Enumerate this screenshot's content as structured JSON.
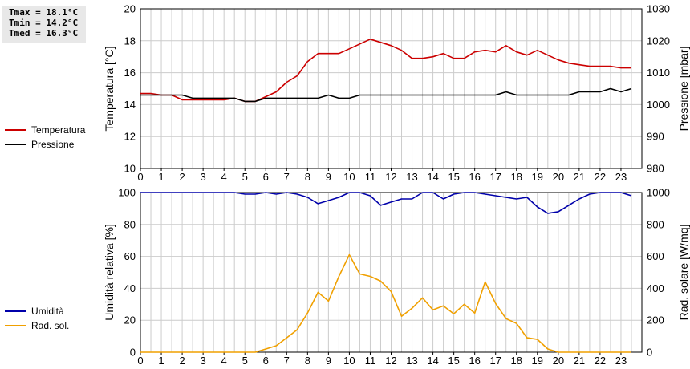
{
  "stats": {
    "tmax": "Tmax = 18.1°C",
    "tmin": "Tmin = 14.2°C",
    "tmed": "Tmed = 16.3°C"
  },
  "colors": {
    "temperature": "#cc0000",
    "pressure": "#000000",
    "humidity": "#0000aa",
    "radiation": "#f0a000",
    "grid": "#cccccc"
  },
  "chart_data": [
    {
      "type": "line",
      "x_ticks": [
        "0",
        "1",
        "2",
        "3",
        "4",
        "5",
        "6",
        "7",
        "8",
        "9",
        "10",
        "11",
        "12",
        "13",
        "14",
        "15",
        "16",
        "17",
        "18",
        "19",
        "20",
        "21",
        "22",
        "23"
      ],
      "xlim": [
        0,
        24
      ],
      "ylabel": "Temperatura [°C]",
      "ylim": [
        10,
        20
      ],
      "y_ticks": [
        "10",
        "12",
        "14",
        "16",
        "18",
        "20"
      ],
      "y2label": "Pressione [mbar]",
      "y2lim": [
        980,
        1030
      ],
      "y2_ticks": [
        "980",
        "990",
        "1000",
        "1010",
        "1020",
        "1030"
      ],
      "grid": true,
      "legend": [
        "Temperatura",
        "Pressione"
      ],
      "series": [
        {
          "name": "Temperatura",
          "axis": "left",
          "x": [
            0,
            0.5,
            1,
            1.5,
            2,
            2.5,
            3,
            3.5,
            4,
            4.5,
            5,
            5.5,
            6,
            6.5,
            7,
            7.5,
            8,
            8.5,
            9,
            9.5,
            10,
            10.5,
            11,
            11.5,
            12,
            12.5,
            13,
            13.5,
            14,
            14.5,
            15,
            15.5,
            16,
            16.5,
            17,
            17.5,
            18,
            18.5,
            19,
            19.5,
            20,
            20.5,
            21,
            21.5,
            22,
            22.5,
            23,
            23.5
          ],
          "values": [
            14.7,
            14.7,
            14.6,
            14.6,
            14.3,
            14.3,
            14.3,
            14.3,
            14.3,
            14.4,
            14.2,
            14.2,
            14.5,
            14.8,
            15.4,
            15.8,
            16.7,
            17.2,
            17.2,
            17.2,
            17.5,
            17.8,
            18.1,
            17.9,
            17.7,
            17.4,
            16.9,
            16.9,
            17.0,
            17.2,
            16.9,
            16.9,
            17.3,
            17.4,
            17.3,
            17.7,
            17.3,
            17.1,
            17.4,
            17.1,
            16.8,
            16.6,
            16.5,
            16.4,
            16.4,
            16.4,
            16.3,
            16.3
          ]
        },
        {
          "name": "Pressione",
          "axis": "right",
          "x": [
            0,
            0.5,
            1,
            1.5,
            2,
            2.5,
            3,
            3.5,
            4,
            4.5,
            5,
            5.5,
            6,
            6.5,
            7,
            7.5,
            8,
            8.5,
            9,
            9.5,
            10,
            10.5,
            11,
            11.5,
            12,
            12.5,
            13,
            13.5,
            14,
            14.5,
            15,
            15.5,
            16,
            16.5,
            17,
            17.5,
            18,
            18.5,
            19,
            19.5,
            20,
            20.5,
            21,
            21.5,
            22,
            22.5,
            23,
            23.5
          ],
          "values": [
            1003,
            1003,
            1003,
            1003,
            1003,
            1002,
            1002,
            1002,
            1002,
            1002,
            1001,
            1001,
            1002,
            1002,
            1002,
            1002,
            1002,
            1002,
            1003,
            1002,
            1002,
            1003,
            1003,
            1003,
            1003,
            1003,
            1003,
            1003,
            1003,
            1003,
            1003,
            1003,
            1003,
            1003,
            1003,
            1004,
            1003,
            1003,
            1003,
            1003,
            1003,
            1003,
            1004,
            1004,
            1004,
            1005,
            1004,
            1005
          ]
        }
      ]
    },
    {
      "type": "line",
      "x_ticks": [
        "0",
        "1",
        "2",
        "3",
        "4",
        "5",
        "6",
        "7",
        "8",
        "9",
        "10",
        "11",
        "12",
        "13",
        "14",
        "15",
        "16",
        "17",
        "18",
        "19",
        "20",
        "21",
        "22",
        "23"
      ],
      "xlim": [
        0,
        24
      ],
      "ylabel": "Umidità relativa [%]",
      "ylim": [
        0,
        100
      ],
      "y_ticks": [
        "0",
        "20",
        "40",
        "60",
        "80",
        "100"
      ],
      "y2label": "Rad. solare [W/mq]",
      "y2lim": [
        0,
        1000
      ],
      "y2_ticks": [
        "0",
        "200",
        "400",
        "600",
        "800",
        "1000"
      ],
      "grid": true,
      "legend": [
        "Umidità",
        "Rad. sol."
      ],
      "series": [
        {
          "name": "Umidità",
          "axis": "left",
          "x": [
            0,
            0.5,
            1,
            1.5,
            2,
            2.5,
            3,
            3.5,
            4,
            4.5,
            5,
            5.5,
            6,
            6.5,
            7,
            7.5,
            8,
            8.5,
            9,
            9.5,
            10,
            10.5,
            11,
            11.5,
            12,
            12.5,
            13,
            13.5,
            14,
            14.5,
            15,
            15.5,
            16,
            16.5,
            17,
            17.5,
            18,
            18.5,
            19,
            19.5,
            20,
            20.5,
            21,
            21.5,
            22,
            22.5,
            23,
            23.5
          ],
          "values": [
            100,
            100,
            100,
            100,
            100,
            100,
            100,
            100,
            100,
            100,
            99,
            99,
            100,
            99,
            100,
            99,
            97,
            93,
            95,
            97,
            100,
            100,
            98,
            92,
            94,
            96,
            96,
            100,
            100,
            96,
            99,
            100,
            100,
            99,
            98,
            97,
            96,
            97,
            91,
            87,
            88,
            92,
            96,
            99,
            100,
            100,
            100,
            98
          ]
        },
        {
          "name": "Rad. sol.",
          "axis": "right",
          "x": [
            0,
            0.5,
            1,
            1.5,
            2,
            2.5,
            3,
            3.5,
            4,
            4.5,
            5,
            5.5,
            6,
            6.5,
            7,
            7.5,
            8,
            8.5,
            9,
            9.5,
            10,
            10.5,
            11,
            11.5,
            12,
            12.5,
            13,
            13.5,
            14,
            14.5,
            15,
            15.5,
            16,
            16.5,
            17,
            17.5,
            18,
            18.5,
            19,
            19.5,
            20,
            20.5,
            21,
            21.5,
            22,
            22.5,
            23,
            23.5
          ],
          "values": [
            0,
            0,
            0,
            0,
            0,
            0,
            0,
            0,
            0,
            0,
            0,
            0,
            20,
            40,
            90,
            140,
            245,
            375,
            320,
            475,
            610,
            490,
            475,
            445,
            380,
            225,
            275,
            340,
            265,
            290,
            240,
            300,
            245,
            440,
            305,
            210,
            180,
            90,
            80,
            20,
            0,
            0,
            0,
            0,
            0,
            0,
            0,
            0
          ]
        }
      ]
    }
  ]
}
